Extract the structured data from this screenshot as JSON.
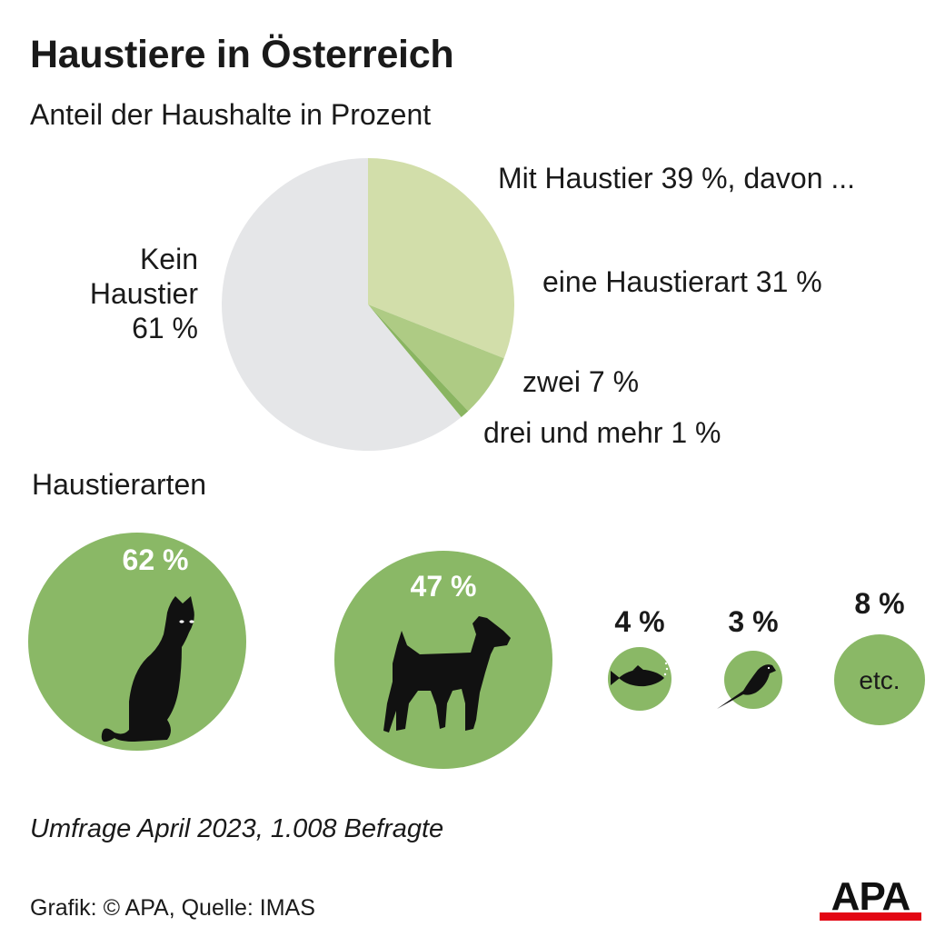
{
  "header": {
    "title": "Haustiere in Österreich",
    "subtitle": "Anteil der Haushalte in Prozent"
  },
  "chart_data": [
    {
      "type": "pie",
      "title": "Haustiere in Österreich",
      "subtitle": "Anteil der Haushalte in Prozent",
      "slices": [
        {
          "label": "eine Haustierart 31 %",
          "value": 31,
          "color": "#d2deaa"
        },
        {
          "label": "zwei 7 %",
          "value": 7,
          "color": "#aecb84"
        },
        {
          "label": "drei und mehr 1 %",
          "value": 1,
          "color": "#8ab561"
        },
        {
          "label": "Kein Haustier 61 %",
          "value": 61,
          "color": "#e5e6e8"
        }
      ],
      "group_label": "Mit Haustier 39 %, davon ...",
      "labels": {
        "kein": "Kein Haustier 61 %",
        "mit": "Mit Haustier 39 %, davon ...",
        "eine": "eine Haustierart 31 %",
        "zwei": "zwei 7 %",
        "drei": "drei und mehr 1 %"
      }
    },
    {
      "type": "bubble",
      "title": "Haustierarten",
      "color": "#8ab866",
      "items": [
        {
          "icon": "cat-icon",
          "value": 62,
          "label": "62 %"
        },
        {
          "icon": "dog-icon",
          "value": 47,
          "label": "47 %"
        },
        {
          "icon": "fish-icon",
          "value": 4,
          "label": "4 %"
        },
        {
          "icon": "bird-icon",
          "value": 3,
          "label": "3 %"
        },
        {
          "icon": "",
          "value": 8,
          "label": "8 %",
          "text": "etc."
        }
      ]
    }
  ],
  "footer": {
    "note": "Umfrage April 2023, 1.008 Befragte",
    "credit": "Grafik: © APA, Quelle: IMAS",
    "logo_text": "APA",
    "logo_color": "#e30613"
  }
}
